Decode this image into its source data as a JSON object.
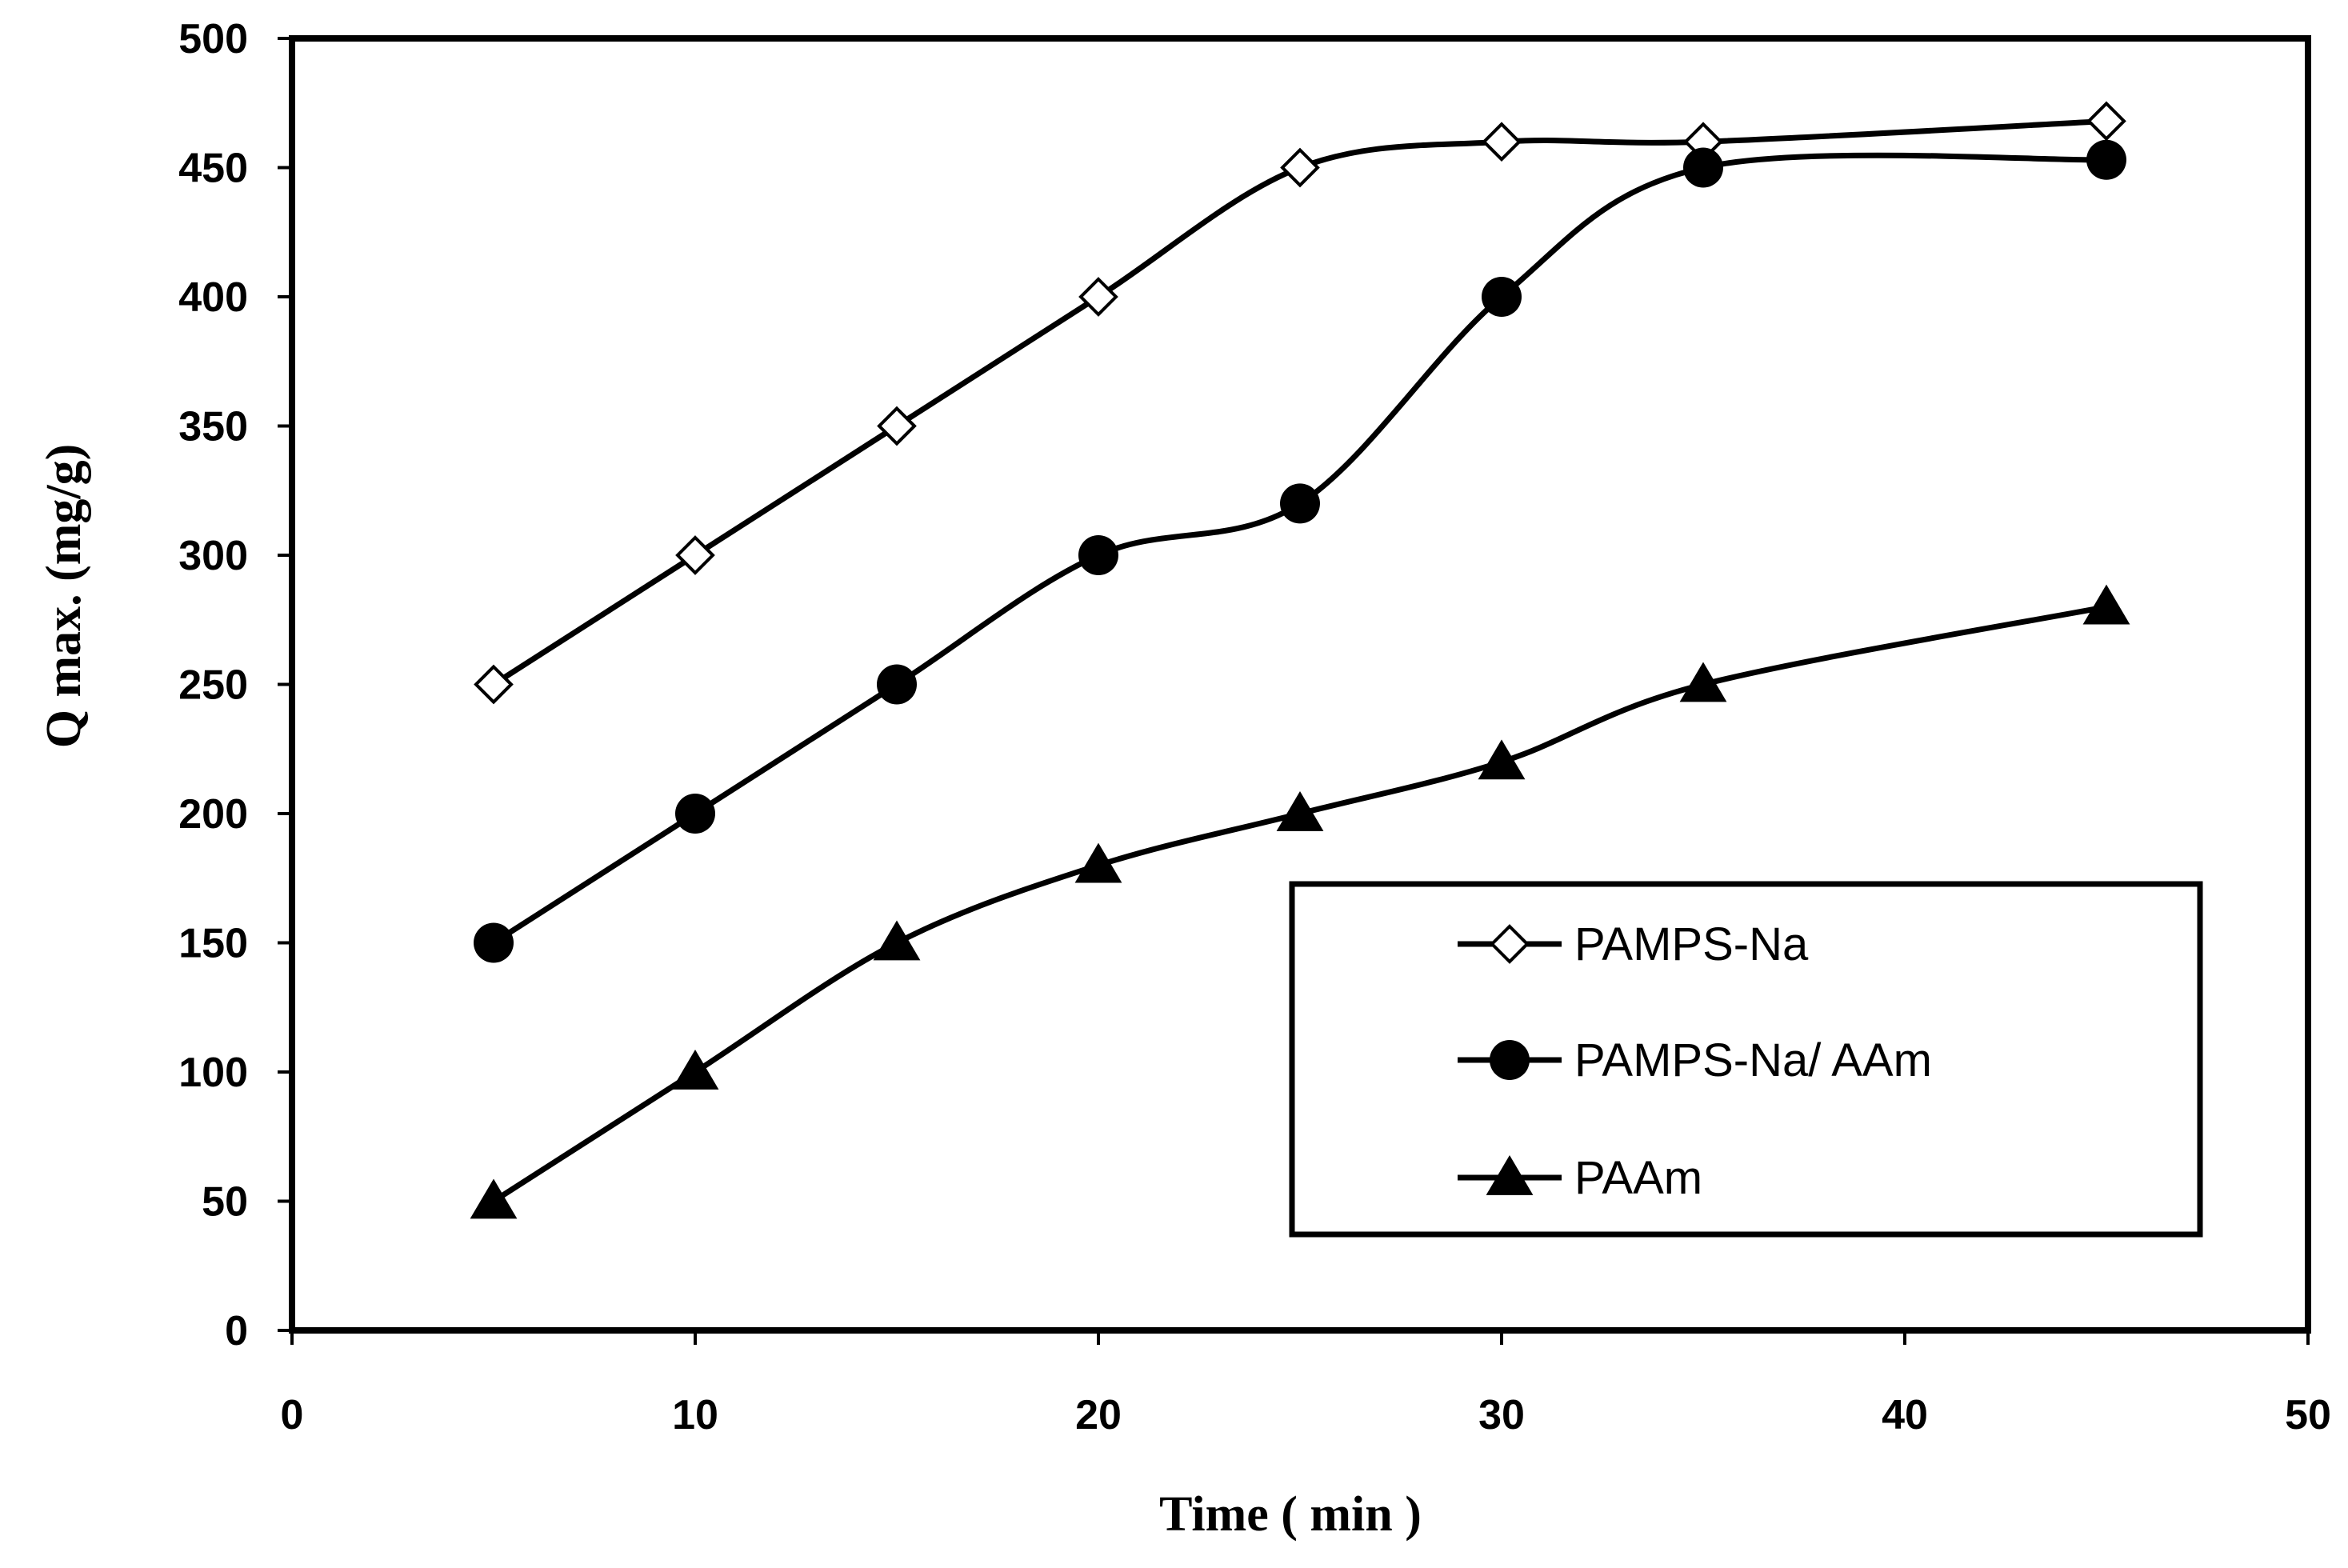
{
  "chart_data": {
    "type": "line",
    "title": "",
    "xlabel": "Time ( min )",
    "ylabel": "Q max. (mg/g)",
    "xlim": [
      0,
      50
    ],
    "ylim": [
      0,
      500
    ],
    "xticks": [
      0,
      10,
      20,
      30,
      40,
      50
    ],
    "yticks": [
      0,
      50,
      100,
      150,
      200,
      250,
      300,
      350,
      400,
      450,
      500
    ],
    "grid": false,
    "legend_position": "bottom-right",
    "series": [
      {
        "name": "PAMPS-Na",
        "marker": "diamond-open",
        "x": [
          5,
          10,
          15,
          20,
          25,
          30,
          35,
          45
        ],
        "y": [
          250,
          300,
          350,
          400,
          450,
          460,
          460,
          468
        ]
      },
      {
        "name": "PAMPS-Na/  AAm",
        "marker": "circle-filled",
        "x": [
          5,
          10,
          15,
          20,
          25,
          30,
          35,
          45
        ],
        "y": [
          150,
          200,
          250,
          300,
          320,
          400,
          450,
          453
        ]
      },
      {
        "name": "PAAm",
        "marker": "triangle-filled",
        "x": [
          5,
          10,
          15,
          20,
          25,
          30,
          35,
          45
        ],
        "y": [
          50,
          100,
          150,
          180,
          200,
          220,
          250,
          280
        ]
      }
    ]
  },
  "colors": {
    "line": "#000000",
    "background": "#ffffff"
  }
}
